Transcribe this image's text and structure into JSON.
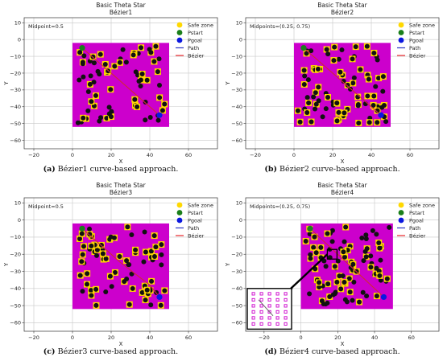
{
  "colors": {
    "field": "#cc00cc",
    "obstacle": "#111111",
    "safe_zone": "#ffd800",
    "start": "#1a7f1a",
    "goal": "#0b18e0",
    "path": "#2a35c8",
    "bezier": "#e8262a"
  },
  "figure": {
    "legend_labels": [
      "Safe zone",
      "Pstart",
      "Pgoal",
      "Path",
      "Bézier"
    ],
    "legend_keys": [
      "safe_zone",
      "start",
      "goal",
      "path",
      "bezier"
    ]
  },
  "chart_data": [
    {
      "type": "scatter",
      "title": "Basic Theta Star",
      "subtitle": "Bézier1",
      "xlabel": "X",
      "ylabel": "Y",
      "xlim": [
        -25,
        75
      ],
      "ylim": [
        -65,
        13
      ],
      "xticks": [
        -20,
        0,
        20,
        40,
        60
      ],
      "yticks": [
        10,
        0,
        -10,
        -20,
        -30,
        -40,
        -50,
        -60
      ],
      "grid": true,
      "legend_position": "top-right",
      "annotation": "Midpoint=0.5",
      "caption_label": "(a)",
      "caption_text": "Bézier1 curve-based approach.",
      "field": {
        "x": [
          0,
          50
        ],
        "y": [
          -52,
          -2
        ]
      },
      "start": [
        5,
        -5
      ],
      "goal": [
        45,
        -45
      ],
      "path": [
        [
          5,
          -5
        ],
        [
          25,
          -25
        ],
        [
          45,
          -45
        ]
      ],
      "bezier": [
        [
          5,
          -5
        ],
        [
          25,
          -25
        ],
        [
          45,
          -45
        ]
      ]
    },
    {
      "type": "scatter",
      "title": "Basic Theta Star",
      "subtitle": "Bézier2",
      "xlabel": "X",
      "ylabel": "Y",
      "xlim": [
        -25,
        75
      ],
      "ylim": [
        -65,
        13
      ],
      "xticks": [
        -20,
        0,
        20,
        40,
        60
      ],
      "yticks": [
        10,
        0,
        -10,
        -20,
        -30,
        -40,
        -50,
        -60
      ],
      "grid": true,
      "legend_position": "top-right",
      "annotation": "Midpoints=(0.25, 0.75)",
      "caption_label": "(b)",
      "caption_text": "Bézier2 curve-based approach.",
      "field": {
        "x": [
          0,
          50
        ],
        "y": [
          -52,
          -2
        ]
      },
      "start": [
        5,
        -5
      ],
      "goal": [
        45,
        -45
      ],
      "path": [
        [
          5,
          -5
        ],
        [
          25,
          -25
        ],
        [
          45,
          -45
        ]
      ],
      "bezier": [
        [
          5,
          -5
        ],
        [
          15,
          -15
        ],
        [
          35,
          -35
        ],
        [
          45,
          -45
        ]
      ]
    },
    {
      "type": "scatter",
      "title": "Basic Theta Star",
      "subtitle": "Bézier3",
      "xlabel": "X",
      "ylabel": "Y",
      "xlim": [
        -25,
        75
      ],
      "ylim": [
        -65,
        13
      ],
      "xticks": [
        -20,
        0,
        20,
        40,
        60
      ],
      "yticks": [
        10,
        0,
        -10,
        -20,
        -30,
        -40,
        -50,
        -60
      ],
      "grid": true,
      "legend_position": "top-right",
      "annotation": "Midpoint=0.5",
      "caption_label": "(c)",
      "caption_text": "Bézier3 curve-based approach.",
      "field": {
        "x": [
          0,
          50
        ],
        "y": [
          -52,
          -2
        ]
      },
      "start": [
        5,
        -5
      ],
      "goal": [
        45,
        -45
      ],
      "path": [
        [
          5,
          -5
        ],
        [
          25,
          -25
        ],
        [
          40,
          -38
        ],
        [
          45,
          -45
        ]
      ],
      "bezier": [
        [
          5,
          -5
        ],
        [
          25,
          -25
        ],
        [
          40,
          -38
        ],
        [
          45,
          -45
        ]
      ]
    },
    {
      "type": "scatter",
      "title": "Basic Theta Star",
      "subtitle": "Bézier4",
      "xlabel": "X",
      "ylabel": "Y",
      "xlim": [
        -30,
        75
      ],
      "ylim": [
        -65,
        13
      ],
      "xticks": [
        -20,
        0,
        20,
        40,
        60
      ],
      "yticks": [
        10,
        0,
        -10,
        -20,
        -30,
        -40,
        -50,
        -60
      ],
      "grid": true,
      "legend_position": "top-right",
      "annotation": "Midpoints=(0.25, 0.75)",
      "caption_label": "(d)",
      "caption_text": "Bézier4 curve-based approach.",
      "field": {
        "x": [
          0,
          50
        ],
        "y": [
          -52,
          -2
        ]
      },
      "start": [
        5,
        -5
      ],
      "goal": [
        45,
        -45
      ],
      "path": [
        [
          5,
          -5
        ],
        [
          25,
          -25
        ],
        [
          45,
          -45
        ]
      ],
      "bezier": [
        [
          5,
          -5
        ],
        [
          15,
          -15
        ],
        [
          35,
          -35
        ],
        [
          45,
          -45
        ]
      ],
      "inset": true
    }
  ]
}
